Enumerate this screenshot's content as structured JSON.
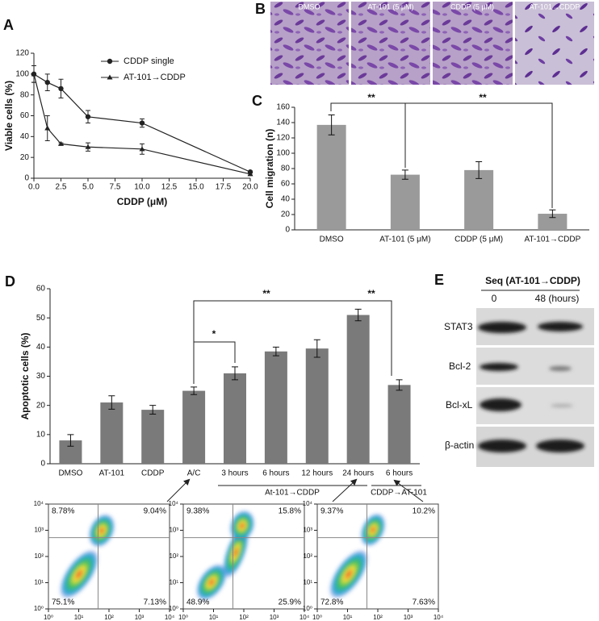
{
  "panel_labels": [
    "A",
    "B",
    "C",
    "D",
    "E"
  ],
  "micrographs": [
    "DMSO",
    "AT-101 (5 μM)",
    "CDDP (5 μM)",
    "AT-101→CDDP"
  ],
  "chart_data": [
    {
      "type": "line",
      "xlabel": "CDDP (μM)",
      "ylabel": "Viable cells (%)",
      "x": [
        0,
        1.25,
        2.5,
        5,
        10,
        20
      ],
      "xlim": [
        0,
        20
      ],
      "xticks": [
        {
          "value": 0,
          "label": "0.0"
        },
        2.5,
        {
          "value": 5,
          "label": "5.0"
        },
        7.5,
        {
          "value": 10,
          "label": "10.0"
        },
        12.5,
        {
          "value": 15,
          "label": "15.0"
        },
        17.5,
        {
          "value": 20,
          "label": "20.0"
        }
      ],
      "ylim": [
        0,
        120
      ],
      "yticks": [
        0,
        20,
        40,
        60,
        80,
        100,
        120
      ],
      "legend": "upper right",
      "series": [
        {
          "name": "CDDP single",
          "color": "#222222",
          "marker": "circle",
          "values": [
            100,
            92,
            86,
            59,
            53,
            6
          ],
          "errors": [
            8,
            8,
            9,
            6,
            4,
            1
          ]
        },
        {
          "name": "AT-101→CDDP",
          "color": "#222222",
          "marker": "triangle",
          "values": [
            100,
            48,
            33,
            30,
            28,
            4
          ],
          "errors": [
            8,
            12,
            1,
            4,
            5,
            1
          ]
        }
      ]
    },
    {
      "type": "bar",
      "ylabel": "Cell migration (n)",
      "categories": [
        "DMSO",
        "AT-101 (5 μM)",
        "CDDP (5 μM)",
        "AT-101→CDDP"
      ],
      "values": [
        137,
        72,
        78,
        21
      ],
      "errors": [
        13,
        6,
        11,
        5
      ],
      "color": "#9a9a9a",
      "ylim": [
        0,
        160
      ],
      "yticks": [
        0,
        20,
        40,
        60,
        80,
        100,
        120,
        140,
        160
      ],
      "annotations": [
        "**",
        "**"
      ]
    },
    {
      "type": "bar",
      "ylabel": "Apoptotic cells (%)",
      "categories": [
        "DMSO",
        "AT-101",
        "CDDP",
        "A/C",
        "3 hours",
        "6 hours",
        "12 hours",
        "24 hours",
        "6 hours"
      ],
      "values": [
        8,
        21,
        18.5,
        25,
        31,
        38.5,
        39.5,
        51,
        27
      ],
      "errors": [
        2,
        2.3,
        1.5,
        1.3,
        2.2,
        1.5,
        3,
        2,
        1.8
      ],
      "color": "#7a7a7a",
      "ylim": [
        0,
        60
      ],
      "yticks": [
        0,
        10,
        20,
        30,
        40,
        50,
        60
      ],
      "annotations": [
        "*",
        "**",
        "**"
      ],
      "groups": [
        "At-101→CDDP",
        "CDDP→AT-101"
      ]
    },
    {
      "type": "flow",
      "log": true,
      "xlim": [
        1,
        10000
      ],
      "ylim": [
        1,
        10000
      ],
      "xticks": [
        {
          "value": 1,
          "label": "10⁰"
        },
        {
          "value": 10,
          "label": "10¹"
        },
        {
          "value": 100,
          "label": "10²"
        },
        {
          "value": 1000,
          "label": "10³"
        },
        {
          "value": 10000,
          "label": "10⁴"
        }
      ],
      "yticks": [
        {
          "value": 1,
          "label": "10⁰"
        },
        {
          "value": 10,
          "label": "10¹"
        },
        {
          "value": 100,
          "label": "10²"
        },
        {
          "value": 1000,
          "label": "10³"
        },
        {
          "value": 10000,
          "label": "10⁴"
        }
      ],
      "values": [
        8.78,
        9.04,
        75.1,
        7.13
      ],
      "value_labels": [
        "8.78%",
        "9.04%",
        "75.1%",
        "7.13%"
      ]
    },
    {
      "type": "flow",
      "log": true,
      "xlim": [
        1,
        10000
      ],
      "ylim": [
        1,
        10000
      ],
      "xticks": [
        {
          "value": 1,
          "label": "10⁰"
        },
        {
          "value": 10,
          "label": "10¹"
        },
        {
          "value": 100,
          "label": "10²"
        },
        {
          "value": 1000,
          "label": "10³"
        },
        {
          "value": 10000,
          "label": "10⁴"
        }
      ],
      "yticks": [
        {
          "value": 1,
          "label": "10⁰"
        },
        {
          "value": 10,
          "label": "10¹"
        },
        {
          "value": 100,
          "label": "10²"
        },
        {
          "value": 1000,
          "label": "10³"
        },
        {
          "value": 10000,
          "label": "10⁴"
        }
      ],
      "values": [
        9.38,
        15.8,
        48.9,
        25.9
      ],
      "value_labels": [
        "9.38%",
        "15.8%",
        "48.9%",
        "25.9%"
      ]
    },
    {
      "type": "flow",
      "log": true,
      "xlim": [
        1,
        10000
      ],
      "ylim": [
        1,
        10000
      ],
      "xticks": [
        {
          "value": 1,
          "label": "10⁰"
        },
        {
          "value": 10,
          "label": "10¹"
        },
        {
          "value": 100,
          "label": "10²"
        },
        {
          "value": 1000,
          "label": "10³"
        },
        {
          "value": 10000,
          "label": "10⁴"
        }
      ],
      "yticks": [
        {
          "value": 1,
          "label": "10⁰"
        },
        {
          "value": 10,
          "label": "10¹"
        },
        {
          "value": 100,
          "label": "10²"
        },
        {
          "value": 1000,
          "label": "10³"
        },
        {
          "value": 10000,
          "label": "10⁴"
        }
      ],
      "values": [
        9.37,
        10.2,
        72.8,
        7.63
      ],
      "value_labels": [
        "9.37%",
        "10.2%",
        "72.8%",
        "7.63%"
      ]
    }
  ],
  "blot": {
    "title": "Seq (AT-101→CDDP)",
    "columns": [
      "0",
      "48 (hours)"
    ],
    "rows": [
      "STAT3",
      "Bcl-2",
      "Bcl-xL",
      "β-actin"
    ]
  }
}
